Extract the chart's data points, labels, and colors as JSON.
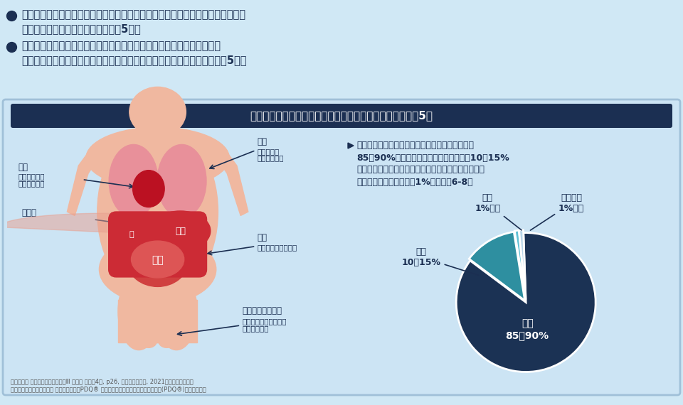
{
  "bg_color": "#bcd9ee",
  "top_bg": "#d0e8f5",
  "inner_bg": "#cce4f4",
  "title_box_color": "#1b2f52",
  "title_text": "悪性中皮腫を生じる組織（胸膜、腹膜、心膜、精巣鞘膜）5）",
  "bullet1_line1": "悪性中皮腫は、胸腔、腹腔、心嚢腔及び精巣鞘膜腔において、体腔表面や臓器を",
  "bullet1_line2": "覆う中皮から発生する悪性腫瘍です5）。",
  "bullet2_line1": "悪性中皮腫とは、発生部位によって悪性胸膜中皮腫、悪性腹膜中皮腫、",
  "bullet2_line2": "悪性心膜中皮腫及び悪性精巣鞘膜中皮腫に分類される悪性腫瘍の総称です5）。",
  "right_text_line1": "悪性中皮腫の最も多い発症部位は胸膜で、全体の",
  "right_text_line2": "85〜90%を占めています。一方、腹膜は10〜15%",
  "right_text_line3": "と少なく、心膜や精巣鞘膜から生じる悪性中皮腫は、",
  "right_text_line4": "大変稀であり、それぞれ1%以下です6-8）",
  "pie_values": [
    87.5,
    12.5,
    1.0,
    1.0
  ],
  "pie_colors": [
    "#1b3254",
    "#2e8fa0",
    "#60c0d5",
    "#b8d5e8"
  ],
  "dark_blue": "#1b2f52",
  "teal": "#2e8fa0",
  "light_teal": "#60c0d5",
  "pale_blue": "#b8d5e8",
  "text_dark": "#1b2f52",
  "footer_text1": "カラー図解 人体の正常構造と機能Ⅲ 消化管 改訂第4版, p26, 日本医事新報社, 2021及び公益財団法人",
  "footer_text2": "神戸医療産業都市推進機構 がん情報サイトPDQ® 日本語版「悪性中皮腫の治療（成人）(PDQ®)」を元に作成",
  "skin_color": "#f0b8a0",
  "skin_dark": "#e8a090",
  "lung_color": "#e8909a",
  "liver_color": "#cc2b35",
  "intestine_color": "#cc2b35",
  "organ_label_bg": "#cc2b35"
}
